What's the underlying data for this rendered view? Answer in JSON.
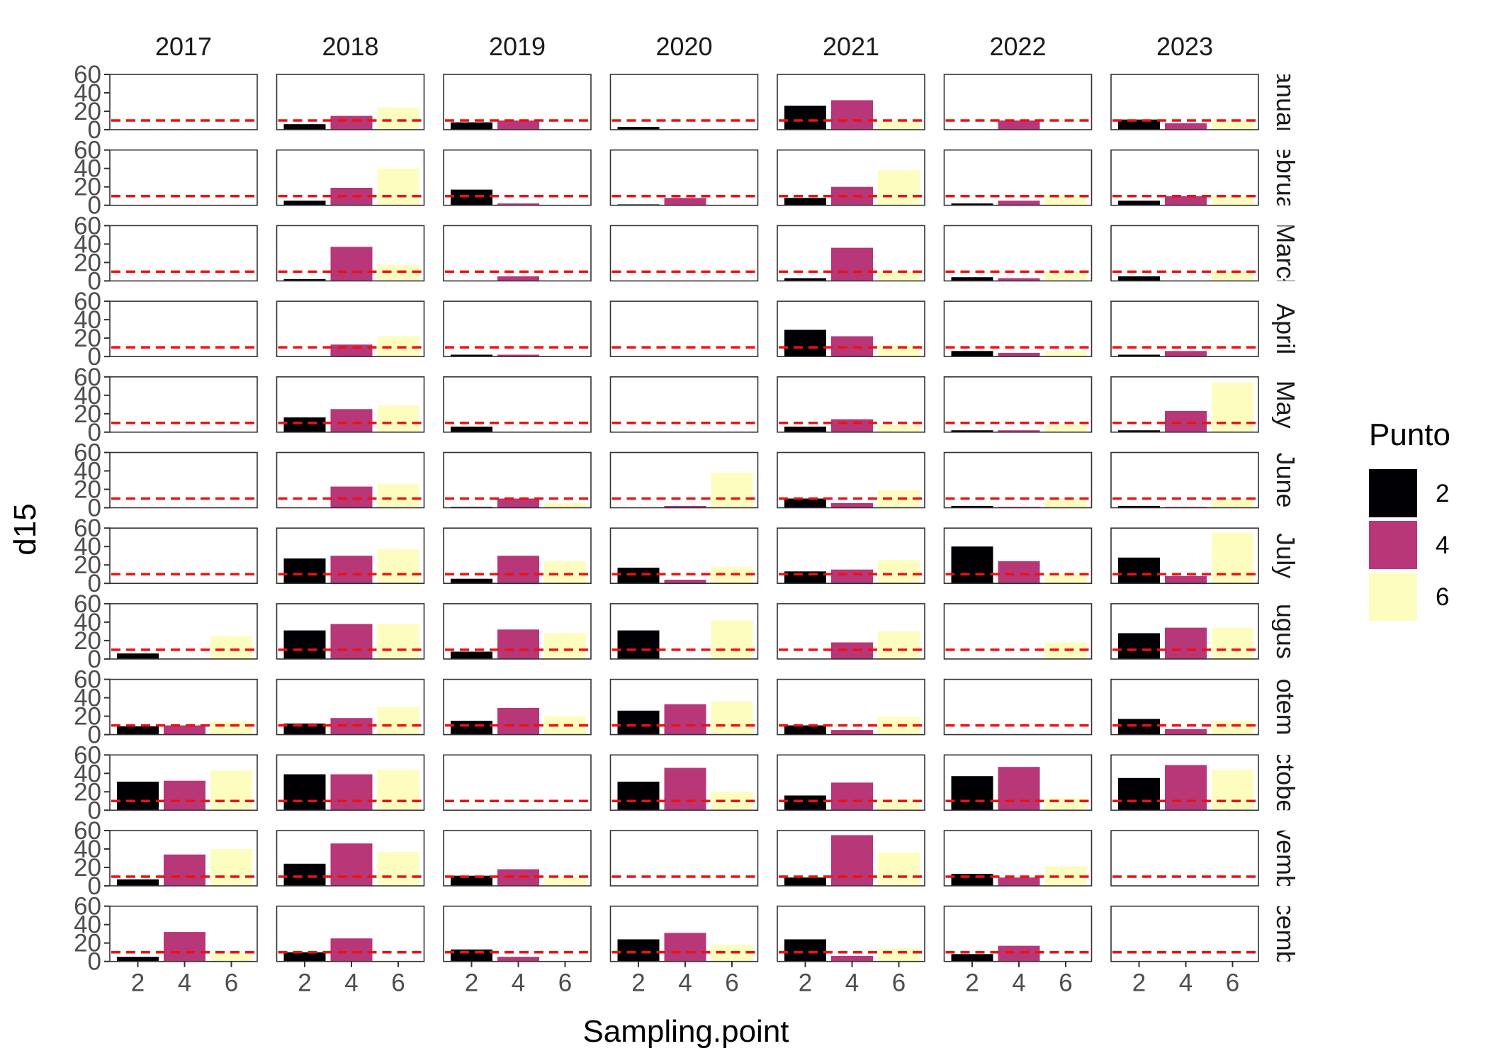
{
  "chart_data": {
    "type": "bar",
    "xlabel": "Sampling.point",
    "ylabel": "d15",
    "legend_title": "Punto",
    "legend_position": "right",
    "grid": false,
    "facet_columns": [
      "2017",
      "2018",
      "2019",
      "2020",
      "2021",
      "2022",
      "2023"
    ],
    "facet_rows": [
      "January",
      "February",
      "March",
      "April",
      "May",
      "June",
      "July",
      "August",
      "September",
      "October",
      "November",
      "December"
    ],
    "facet_rows_visible": [
      "anuar",
      "ebrua",
      "Marcł",
      "April",
      "May",
      "June",
      "July",
      "ugus",
      "otem",
      "ctobe",
      "vemb",
      "cemb"
    ],
    "categories": [
      "2",
      "4",
      "6"
    ],
    "x_ticks": [
      "2",
      "4",
      "6"
    ],
    "y_ticks": [
      "0",
      "20",
      "40",
      "60"
    ],
    "ylim": [
      0,
      60
    ],
    "reference_line": {
      "value": 10,
      "color": "#ee1111",
      "style": "dashed"
    },
    "series": [
      {
        "name": "2",
        "color": "#000004"
      },
      {
        "name": "4",
        "color": "#b73779"
      },
      {
        "name": "6",
        "color": "#fcfdbf"
      }
    ],
    "values": [
      [
        [
          0,
          0,
          0
        ],
        [
          6,
          15,
          24
        ],
        [
          8,
          10,
          0
        ],
        [
          3,
          0,
          0
        ],
        [
          26,
          32,
          10
        ],
        [
          0,
          10,
          0
        ],
        [
          11,
          7,
          10
        ]
      ],
      [
        [
          0,
          0,
          0
        ],
        [
          5,
          19,
          40
        ],
        [
          17,
          2,
          0
        ],
        [
          1,
          8,
          0
        ],
        [
          8,
          20,
          38
        ],
        [
          2,
          5,
          10
        ],
        [
          5,
          10,
          10
        ]
      ],
      [
        [
          0,
          0,
          0
        ],
        [
          2,
          37,
          17
        ],
        [
          0,
          5,
          0
        ],
        [
          0,
          0,
          0
        ],
        [
          3,
          36,
          10
        ],
        [
          4,
          3,
          10
        ],
        [
          5,
          0,
          10
        ]
      ],
      [
        [
          0,
          0,
          0
        ],
        [
          0,
          13,
          22
        ],
        [
          2,
          2,
          0
        ],
        [
          0,
          0,
          0
        ],
        [
          29,
          22,
          12
        ],
        [
          6,
          4,
          6
        ],
        [
          2,
          6,
          0
        ]
      ],
      [
        [
          0,
          0,
          0
        ],
        [
          16,
          25,
          29
        ],
        [
          6,
          0,
          0
        ],
        [
          0,
          0,
          0
        ],
        [
          6,
          14,
          8
        ],
        [
          2,
          2,
          8
        ],
        [
          2,
          23,
          54
        ]
      ],
      [
        [
          0,
          0,
          0
        ],
        [
          0,
          23,
          26
        ],
        [
          1,
          10,
          5
        ],
        [
          0,
          2,
          38
        ],
        [
          10,
          5,
          19
        ],
        [
          2,
          1,
          9
        ],
        [
          2,
          1,
          9
        ]
      ],
      [
        [
          0,
          0,
          0
        ],
        [
          27,
          30,
          37
        ],
        [
          5,
          30,
          24
        ],
        [
          17,
          4,
          18
        ],
        [
          13,
          15,
          25
        ],
        [
          40,
          24,
          10
        ],
        [
          28,
          8,
          55
        ]
      ],
      [
        [
          6,
          0,
          25
        ],
        [
          31,
          38,
          38
        ],
        [
          8,
          32,
          28
        ],
        [
          31,
          0,
          42
        ],
        [
          0,
          18,
          30
        ],
        [
          0,
          0,
          18
        ],
        [
          28,
          34,
          34
        ]
      ],
      [
        [
          9,
          10,
          14
        ],
        [
          12,
          18,
          30
        ],
        [
          15,
          29,
          20
        ],
        [
          26,
          33,
          36
        ],
        [
          10,
          5,
          19
        ],
        [
          0,
          0,
          0
        ],
        [
          17,
          6,
          15
        ]
      ],
      [
        [
          31,
          32,
          43
        ],
        [
          39,
          39,
          44
        ],
        [
          0,
          0,
          0
        ],
        [
          31,
          46,
          20
        ],
        [
          16,
          30,
          12
        ],
        [
          37,
          47,
          13
        ],
        [
          35,
          49,
          44
        ]
      ],
      [
        [
          7,
          34,
          40
        ],
        [
          24,
          46,
          37
        ],
        [
          11,
          18,
          10
        ],
        [
          0,
          0,
          0
        ],
        [
          9,
          55,
          36
        ],
        [
          13,
          9,
          21
        ],
        [
          0,
          0,
          0
        ]
      ],
      [
        [
          5,
          32,
          10
        ],
        [
          10,
          25,
          0
        ],
        [
          13,
          5,
          0
        ],
        [
          24,
          31,
          18
        ],
        [
          24,
          6,
          14
        ],
        [
          8,
          17,
          0
        ],
        [
          0,
          0,
          0
        ]
      ]
    ]
  }
}
